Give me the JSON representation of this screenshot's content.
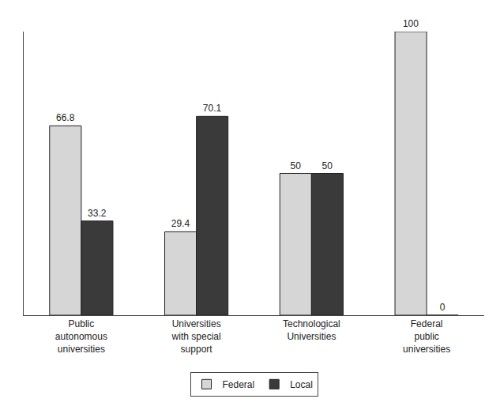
{
  "chart_data": {
    "type": "bar",
    "categories": [
      "Public autonomous universities",
      "Universities with special support",
      "Technological Universities",
      "Federal public universities"
    ],
    "series": [
      {
        "name": "Federal",
        "color": "#d6d6d6",
        "values": [
          66.8,
          29.4,
          50,
          100
        ]
      },
      {
        "name": "Local",
        "color": "#3a3a3a",
        "values": [
          33.2,
          70.1,
          50,
          0
        ]
      }
    ],
    "ylim": [
      0,
      100
    ],
    "yticks": [],
    "data_labels": true,
    "tick_labels": "x",
    "legend": "bottom",
    "grid": false
  }
}
